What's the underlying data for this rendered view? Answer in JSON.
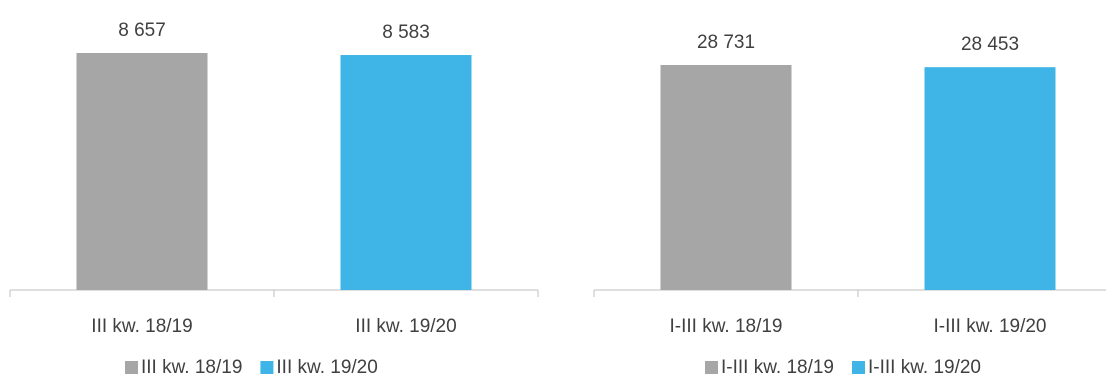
{
  "chart_data": [
    {
      "type": "bar",
      "categories": [
        "III kw. 18/19",
        "III kw. 19/20"
      ],
      "values": [
        8657,
        8583
      ],
      "value_labels": [
        "8 657",
        "8 583"
      ],
      "colors": [
        "#a6a6a6",
        "#3eb5e6"
      ],
      "legend": [
        "III kw. 18/19",
        "III kw. 19/20"
      ],
      "legend_position": "bottom",
      "ylim": [
        0,
        9200
      ],
      "grid": false
    },
    {
      "type": "bar",
      "categories": [
        "I-III kw. 18/19",
        "I-III kw. 19/20"
      ],
      "values": [
        28731,
        28453
      ],
      "value_labels": [
        "28 731",
        "28 453"
      ],
      "colors": [
        "#a6a6a6",
        "#3eb5e6"
      ],
      "legend": [
        "I-III kw. 18/19",
        "I-III kw. 19/20"
      ],
      "legend_position": "bottom",
      "ylim": [
        0,
        29000
      ],
      "grid": false
    }
  ]
}
